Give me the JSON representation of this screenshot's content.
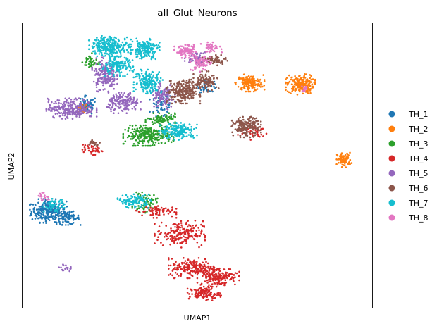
{
  "chart_data": {
    "type": "scatter",
    "title": "all_Glut_Neurons",
    "xlabel": "UMAP1",
    "ylabel": "UMAP2",
    "xlim": [
      0,
      100
    ],
    "ylim": [
      0,
      100
    ],
    "grid": false,
    "ticks": false,
    "legend_placement": "right-outside",
    "series": [
      {
        "name": "TH_1",
        "color": "#1f77b4",
        "clusters": [
          {
            "cx": 7.5,
            "cy": 34,
            "rx": 4.5,
            "ry": 3.5,
            "n": 260
          },
          {
            "cx": 13,
            "cy": 31.5,
            "rx": 3,
            "ry": 2,
            "n": 80
          },
          {
            "cx": 18.5,
            "cy": 71,
            "rx": 2.5,
            "ry": 3,
            "n": 70
          },
          {
            "cx": 40,
            "cy": 71,
            "rx": 3,
            "ry": 4,
            "n": 60
          },
          {
            "cx": 53,
            "cy": 78,
            "rx": 2.5,
            "ry": 2,
            "n": 40
          }
        ]
      },
      {
        "name": "TH_2",
        "color": "#ff7f0e",
        "clusters": [
          {
            "cx": 65,
            "cy": 79,
            "rx": 3.5,
            "ry": 2.5,
            "n": 160
          },
          {
            "cx": 79.5,
            "cy": 78.5,
            "rx": 3.5,
            "ry": 3,
            "n": 190
          },
          {
            "cx": 92,
            "cy": 52,
            "rx": 1.8,
            "ry": 2.2,
            "n": 90
          },
          {
            "cx": 17,
            "cy": 70,
            "rx": 1.5,
            "ry": 1.5,
            "n": 20
          }
        ]
      },
      {
        "name": "TH_3",
        "color": "#2ca02c",
        "clusters": [
          {
            "cx": 36,
            "cy": 60.5,
            "rx": 6,
            "ry": 3,
            "n": 260
          },
          {
            "cx": 40,
            "cy": 66,
            "rx": 4,
            "ry": 2,
            "n": 90
          },
          {
            "cx": 19.5,
            "cy": 86.5,
            "rx": 2,
            "ry": 2.5,
            "n": 40
          },
          {
            "cx": 35,
            "cy": 37,
            "rx": 3,
            "ry": 3,
            "n": 60
          }
        ]
      },
      {
        "name": "TH_4",
        "color": "#d62728",
        "clusters": [
          {
            "cx": 45,
            "cy": 26,
            "rx": 6,
            "ry": 4,
            "n": 190
          },
          {
            "cx": 49,
            "cy": 14,
            "rx": 6,
            "ry": 3,
            "n": 200
          },
          {
            "cx": 56,
            "cy": 11,
            "rx": 5,
            "ry": 3,
            "n": 170
          },
          {
            "cx": 52,
            "cy": 5,
            "rx": 4,
            "ry": 2,
            "n": 120
          },
          {
            "cx": 20,
            "cy": 55.5,
            "rx": 2.5,
            "ry": 1.5,
            "n": 40
          },
          {
            "cx": 38,
            "cy": 34,
            "rx": 5,
            "ry": 2,
            "n": 70
          },
          {
            "cx": 66,
            "cy": 62,
            "rx": 4,
            "ry": 2.5,
            "n": 40
          }
        ]
      },
      {
        "name": "TH_5",
        "color": "#9467bd",
        "clusters": [
          {
            "cx": 14,
            "cy": 70,
            "rx": 6,
            "ry": 3,
            "n": 260
          },
          {
            "cx": 23.5,
            "cy": 82,
            "rx": 3,
            "ry": 5,
            "n": 180
          },
          {
            "cx": 29,
            "cy": 72,
            "rx": 4,
            "ry": 3,
            "n": 160
          },
          {
            "cx": 40,
            "cy": 74,
            "rx": 3,
            "ry": 4,
            "n": 110
          },
          {
            "cx": 50,
            "cy": 88,
            "rx": 3,
            "ry": 2,
            "n": 60
          },
          {
            "cx": 12,
            "cy": 14,
            "rx": 1.5,
            "ry": 1,
            "n": 18
          }
        ]
      },
      {
        "name": "TH_6",
        "color": "#8c564b",
        "clusters": [
          {
            "cx": 46,
            "cy": 76,
            "rx": 4,
            "ry": 3.5,
            "n": 260
          },
          {
            "cx": 52.5,
            "cy": 79.5,
            "rx": 3,
            "ry": 3,
            "n": 110
          },
          {
            "cx": 55,
            "cy": 87,
            "rx": 3,
            "ry": 1.5,
            "n": 60
          },
          {
            "cx": 64,
            "cy": 63.5,
            "rx": 3.5,
            "ry": 3,
            "n": 170
          },
          {
            "cx": 20.5,
            "cy": 58,
            "rx": 1.5,
            "ry": 1,
            "n": 20
          }
        ]
      },
      {
        "name": "TH_7",
        "color": "#17becf",
        "clusters": [
          {
            "cx": 25,
            "cy": 92,
            "rx": 5,
            "ry": 3,
            "n": 260
          },
          {
            "cx": 35,
            "cy": 91,
            "rx": 3.5,
            "ry": 3,
            "n": 170
          },
          {
            "cx": 27,
            "cy": 85,
            "rx": 4,
            "ry": 3,
            "n": 150
          },
          {
            "cx": 36,
            "cy": 79.5,
            "rx": 3.5,
            "ry": 3.5,
            "n": 170
          },
          {
            "cx": 44.5,
            "cy": 62,
            "rx": 4.5,
            "ry": 2.5,
            "n": 180
          },
          {
            "cx": 32,
            "cy": 37.5,
            "rx": 4,
            "ry": 2,
            "n": 110
          },
          {
            "cx": 9,
            "cy": 36,
            "rx": 2.5,
            "ry": 2,
            "n": 60
          }
        ]
      },
      {
        "name": "TH_8",
        "color": "#e377c2",
        "clusters": [
          {
            "cx": 47,
            "cy": 90,
            "rx": 3,
            "ry": 2,
            "n": 90
          },
          {
            "cx": 51,
            "cy": 86,
            "rx": 2.5,
            "ry": 2.5,
            "n": 80
          },
          {
            "cx": 54,
            "cy": 91.5,
            "rx": 2.5,
            "ry": 1.5,
            "n": 40
          },
          {
            "cx": 6,
            "cy": 39,
            "rx": 1.5,
            "ry": 1.2,
            "n": 20
          },
          {
            "cx": 81,
            "cy": 77,
            "rx": 1.5,
            "ry": 1,
            "n": 15
          }
        ]
      }
    ]
  }
}
